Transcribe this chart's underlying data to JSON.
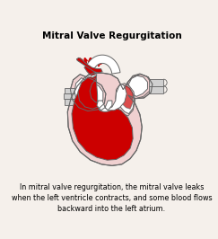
{
  "title": "Mitral Valve Regurgitation",
  "caption": "In mitral valve regurgitation, the mitral valve leaks\nwhen the left ventricle contracts, and some blood flows\nbackward into the left atrium.",
  "bg_color": "#f5f0eb",
  "outline_color": "#666666",
  "red": "#cc0000",
  "pink": "#eabcbc",
  "light_pink": "#f0d0d0",
  "white": "#ffffff",
  "gray": "#c8c8c8",
  "title_fontsize": 7.5,
  "caption_fontsize": 5.8,
  "lw": 0.7
}
